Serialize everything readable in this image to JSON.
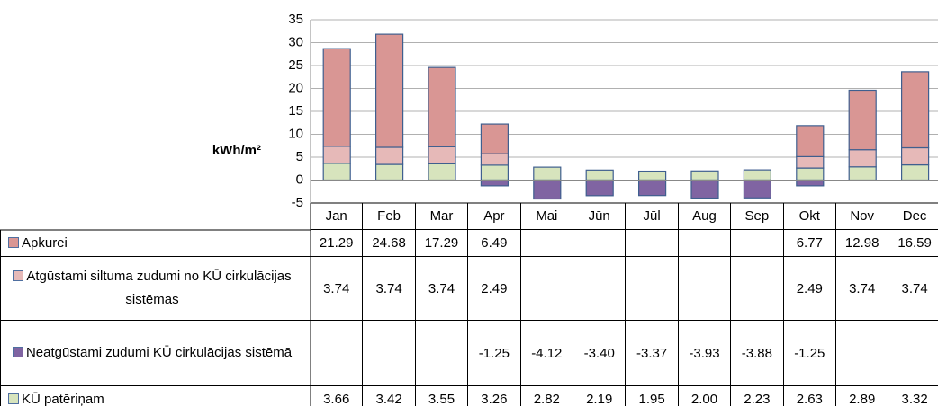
{
  "chart_data": {
    "type": "bar",
    "stacked": true,
    "y_label": "kWh/m²",
    "categories": [
      "Jan",
      "Feb",
      "Mar",
      "Apr",
      "Mai",
      "Jūn",
      "Jūl",
      "Aug",
      "Sep",
      "Okt",
      "Nov",
      "Dec"
    ],
    "ylim": [
      -5,
      35
    ],
    "yticks": [
      35,
      30,
      25,
      20,
      15,
      10,
      5,
      0,
      -5
    ],
    "grid": true,
    "series": [
      {
        "name": "Apkurei",
        "color": "#d99694",
        "values": [
          21.29,
          24.68,
          17.29,
          6.49,
          null,
          null,
          null,
          null,
          null,
          6.77,
          12.98,
          16.59
        ],
        "value_labels": [
          "21.29",
          "24.68",
          "17.29",
          "6.49",
          null,
          null,
          null,
          null,
          null,
          "6.77",
          "12.98",
          "16.59"
        ]
      },
      {
        "name": "Atgūstami siltuma zudumi no KŪ cirkulācijas sistēmas",
        "color": "#e6b9b8",
        "values": [
          3.74,
          3.74,
          3.74,
          2.49,
          null,
          null,
          null,
          null,
          null,
          2.49,
          3.74,
          3.74
        ],
        "value_labels": [
          "3.74",
          "3.74",
          "3.74",
          "2.49",
          null,
          null,
          null,
          null,
          null,
          "2.49",
          "3.74",
          "3.74"
        ]
      },
      {
        "name": "Neatgūstami zudumi KŪ cirkulācijas sistēmā",
        "color": "#8064a2",
        "values": [
          null,
          null,
          null,
          -1.25,
          -4.12,
          -3.4,
          -3.37,
          -3.93,
          -3.88,
          -1.25,
          null,
          null
        ],
        "value_labels": [
          null,
          null,
          null,
          "-1.25",
          "-4.12",
          "-3.40",
          "-3.37",
          "-3.93",
          "-3.88",
          "-1.25",
          null,
          null
        ]
      },
      {
        "name": "KŪ patēriņam",
        "color": "#d7e4bd",
        "values": [
          3.66,
          3.42,
          3.55,
          3.26,
          2.82,
          2.19,
          1.95,
          2.0,
          2.23,
          2.63,
          2.89,
          3.32
        ],
        "value_labels": [
          "3.66",
          "3.42",
          "3.55",
          "3.26",
          "2.82",
          "2.19",
          "1.95",
          "2.00",
          "2.23",
          "2.63",
          "2.89",
          "3.32"
        ]
      }
    ]
  }
}
